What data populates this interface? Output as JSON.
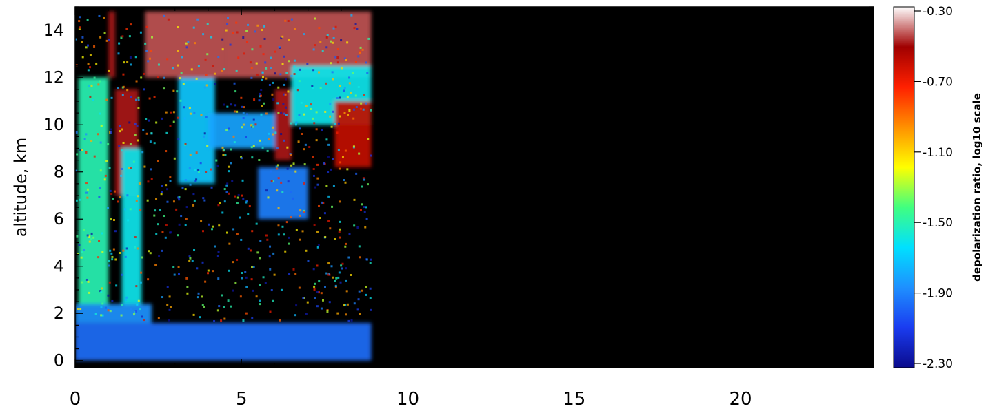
{
  "chart_data": {
    "type": "heatmap",
    "title": "",
    "xlabel": "",
    "ylabel": "altitude, km",
    "xlim": [
      0,
      24
    ],
    "ylim": [
      -0.3,
      15
    ],
    "x_ticks": [
      "0",
      "5",
      "10",
      "15",
      "20"
    ],
    "y_ticks": [
      "0",
      "2",
      "4",
      "6",
      "8",
      "10",
      "12",
      "14"
    ],
    "data_x_extent": [
      0,
      8.9
    ],
    "colorbar": {
      "label": "depolarization ratio, log10 scale",
      "range": [
        -2.3,
        -0.3
      ],
      "ticks": [
        "-0.30",
        "-0.70",
        "-1.10",
        "-1.50",
        "-1.90",
        "-2.30"
      ],
      "colormap": [
        "#0a0a8c",
        "#1a3cf0",
        "#1e90ff",
        "#00e0ff",
        "#40ff80",
        "#ffff00",
        "#ff9000",
        "#ff2000",
        "#a00000",
        "#ffffff"
      ]
    },
    "regions": [
      {
        "x": [
          0,
          8.9
        ],
        "y": [
          0,
          1.6
        ],
        "value": -1.95
      },
      {
        "x": [
          0,
          2.3
        ],
        "y": [
          1.6,
          2.4
        ],
        "value": -1.85
      },
      {
        "x": [
          0.1,
          1.0
        ],
        "y": [
          2.4,
          12
        ],
        "value": -1.5
      },
      {
        "x": [
          1.0,
          1.2
        ],
        "y": [
          12,
          14.8
        ],
        "value": -0.5
      },
      {
        "x": [
          1.2,
          1.9
        ],
        "y": [
          7.0,
          11.5
        ],
        "value": -0.5
      },
      {
        "x": [
          1.4,
          2.0
        ],
        "y": [
          2.4,
          9.0
        ],
        "value": -1.6
      },
      {
        "x": [
          3.1,
          4.2
        ],
        "y": [
          7.5,
          12.0
        ],
        "value": -1.7
      },
      {
        "x": [
          2.1,
          4.5
        ],
        "y": [
          12.0,
          14.8
        ],
        "value": -0.45
      },
      {
        "x": [
          4.5,
          8.9
        ],
        "y": [
          12.0,
          14.8
        ],
        "value": -0.45
      },
      {
        "x": [
          6.0,
          6.5
        ],
        "y": [
          8.5,
          11.5
        ],
        "value": -0.5
      },
      {
        "x": [
          6.5,
          8.9
        ],
        "y": [
          10.0,
          12.5
        ],
        "value": -1.6
      },
      {
        "x": [
          7.8,
          8.9
        ],
        "y": [
          8.2,
          11.0
        ],
        "value": -0.6
      },
      {
        "x": [
          5.5,
          7.0
        ],
        "y": [
          6.0,
          8.2
        ],
        "value": -1.9
      },
      {
        "x": [
          4.0,
          6.0
        ],
        "y": [
          9.0,
          10.5
        ],
        "value": -1.8
      }
    ]
  }
}
